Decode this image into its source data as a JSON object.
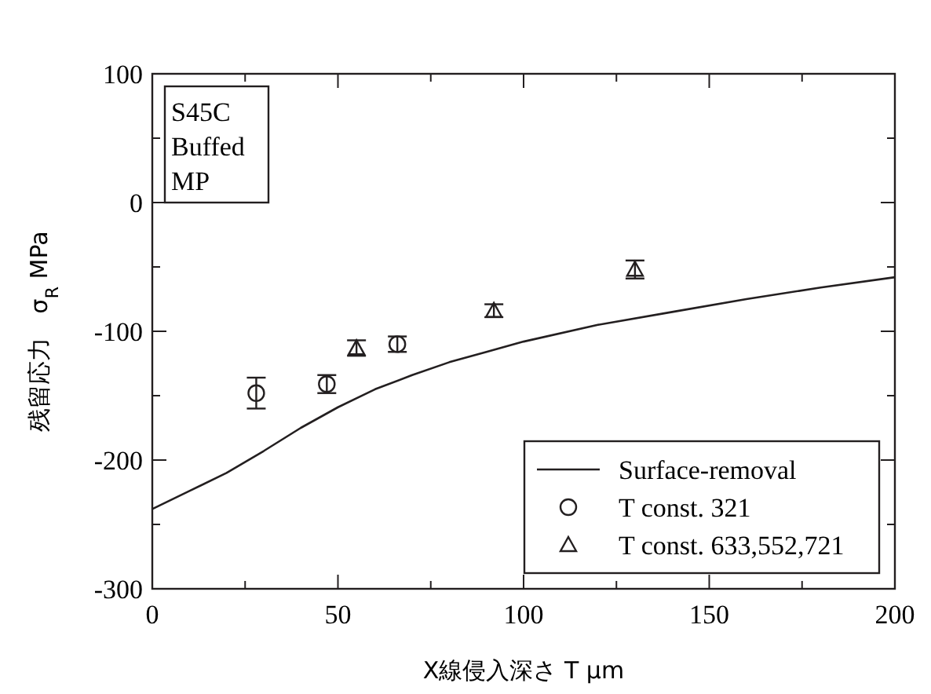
{
  "chart_data": {
    "type": "scatter",
    "xlabel": "X線侵入深さ T μm",
    "ylabel": "残留応力　σ$_{R}$ MPa",
    "xlim": [
      0,
      200
    ],
    "xticks": [
      0,
      {
        "value": 25,
        "label": null
      },
      50,
      {
        "value": 75,
        "label": null
      },
      100,
      {
        "value": 125,
        "label": null
      },
      150,
      {
        "value": 175,
        "label": null
      },
      200
    ],
    "ylim": [
      -300,
      100
    ],
    "yticks": [
      -300,
      {
        "value": -250,
        "label": null
      },
      -200,
      {
        "value": -150,
        "label": null
      },
      -100,
      {
        "value": -50,
        "label": null
      },
      0,
      {
        "value": 50,
        "label": null
      },
      100
    ],
    "grid": false,
    "legend": "bottom right",
    "annotations": [
      "S45C\nBuffed\nMP"
    ],
    "series": [
      {
        "name": "Surface-removal",
        "type": "line",
        "color": "#231f20",
        "x": [
          0,
          10,
          20,
          30,
          40,
          50,
          60,
          70,
          80,
          90,
          100,
          120,
          140,
          160,
          180,
          200
        ],
        "values": [
          -238,
          -224,
          -210,
          -193,
          -175,
          -159,
          -145,
          -134,
          -124,
          -116,
          -108,
          -95,
          -85,
          -75,
          -66,
          -58
        ]
      },
      {
        "name": "T const. 321",
        "color": "#231f20",
        "marker": "circle",
        "x": [
          28,
          47,
          66
        ],
        "values": [
          -148,
          -141,
          -110
        ],
        "errors": [
          12,
          7,
          6
        ]
      },
      {
        "name": "T const. 633,552,721",
        "color": "#231f20",
        "marker": "triangle",
        "x": [
          55,
          92,
          130
        ],
        "values": [
          -113,
          -84,
          -52
        ],
        "errors": [
          6,
          5,
          7
        ]
      }
    ]
  }
}
